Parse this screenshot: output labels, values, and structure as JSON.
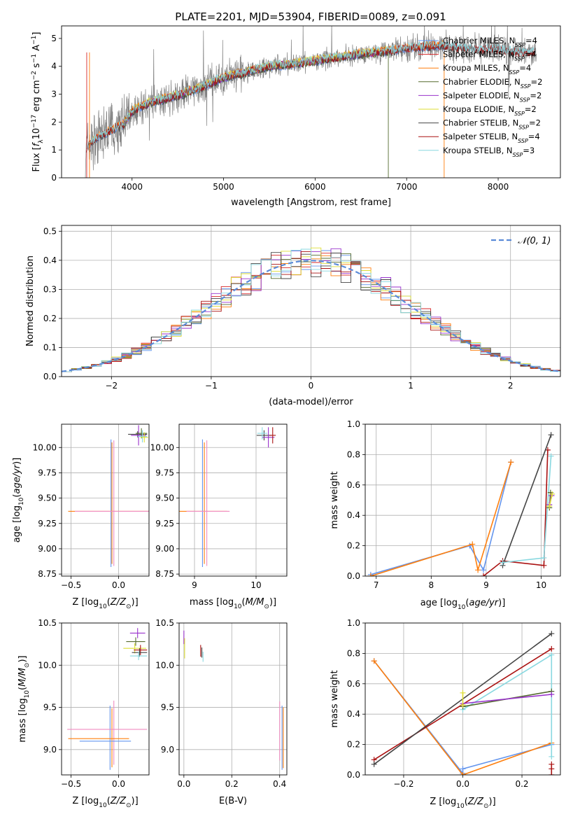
{
  "figure": {
    "title": "PLATE=2201, MJD=53904, FIBERID=0089, z=0.091"
  },
  "colors": {
    "chabrier_miles": "#6495ed",
    "salpeter_miles": "#d62728",
    "kroupa_miles": "#ff7f0e",
    "chabrier_elodie": "#556b2f",
    "salpeter_elodie": "#9932cc",
    "kroupa_elodie": "#dddd33",
    "chabrier_stelib": "#444444",
    "salpeter_stelib": "#aa1111",
    "kroupa_stelib": "#88d8e0",
    "data_gray": "#808080",
    "gaussian": "#5b8bd8",
    "pink": "#f08cc0",
    "green": "#6ccf6c"
  },
  "chart_data": [
    {
      "id": "spectrum",
      "type": "line",
      "title": "PLATE=2201, MJD=53904, FIBERID=0089, z=0.091",
      "xlabel": "wavelength [Angstrom, rest frame]",
      "ylabel": "Flux [f_λ 10^-17 erg cm^-2 s^-1 A^-1]",
      "xlim": [
        3230,
        8680
      ],
      "ylim": [
        0,
        5.45
      ],
      "xticks": [
        "4000",
        "5000",
        "6000",
        "7000",
        "8000"
      ],
      "yticks": [
        "0",
        "1",
        "2",
        "3",
        "4",
        "5"
      ],
      "grid": false,
      "legend_position": "upper-right",
      "continuum": {
        "x": [
          3500,
          3600,
          3700,
          3800,
          3900,
          4000,
          4200,
          4500,
          4800,
          5000,
          5200,
          5500,
          5800,
          6000,
          6200,
          6500,
          6800,
          7000,
          7200,
          7400,
          7600,
          7800,
          8000,
          8200,
          8400
        ],
        "y": [
          1.1,
          1.4,
          1.6,
          1.75,
          1.9,
          2.4,
          2.7,
          2.95,
          3.3,
          3.6,
          3.75,
          4.0,
          4.1,
          4.2,
          4.3,
          4.45,
          4.55,
          4.65,
          4.7,
          4.75,
          4.65,
          4.6,
          4.6,
          4.5,
          4.5
        ]
      },
      "legend": [
        {
          "label": "Chabrier MILES, N",
          "sub": "SSP",
          "suffix": "=4",
          "color_key": "chabrier_miles"
        },
        {
          "label": "Salpeter MILES, N",
          "sub": "SSP",
          "suffix": "=4",
          "color_key": "salpeter_miles"
        },
        {
          "label": "Kroupa MILES, N",
          "sub": "SSP",
          "suffix": "=4",
          "color_key": "kroupa_miles"
        },
        {
          "label": "Chabrier ELODIE, N",
          "sub": "SSP",
          "suffix": "=2",
          "color_key": "chabrier_elodie"
        },
        {
          "label": "Salpeter ELODIE, N",
          "sub": "SSP",
          "suffix": "=2",
          "color_key": "salpeter_elodie"
        },
        {
          "label": "Kroupa ELODIE, N",
          "sub": "SSP",
          "suffix": "=2",
          "color_key": "kroupa_elodie"
        },
        {
          "label": "Chabrier STELIB, N",
          "sub": "SSP",
          "suffix": "=2",
          "color_key": "chabrier_stelib"
        },
        {
          "label": "Salpeter STELIB, N",
          "sub": "SSP",
          "suffix": "=4",
          "color_key": "salpeter_stelib"
        },
        {
          "label": "Kroupa STELIB, N",
          "sub": "SSP",
          "suffix": "=3",
          "color_key": "kroupa_stelib"
        }
      ]
    },
    {
      "id": "residuals",
      "type": "line",
      "xlabel": "(data-model)/error",
      "ylabel": "Normed distribution",
      "xlim": [
        -2.5,
        2.5
      ],
      "ylim": [
        0,
        0.52
      ],
      "xticks": [
        "−2",
        "−1",
        "0",
        "1",
        "2"
      ],
      "yticks": [
        "0.0",
        "0.1",
        "0.2",
        "0.3",
        "0.4",
        "0.5"
      ],
      "grid": true,
      "legend": [
        {
          "label": "𝒩(0, 1)",
          "color_key": "gaussian"
        }
      ],
      "legend_position": "upper-right",
      "gaussian": {
        "mean": 0,
        "sigma": 1
      }
    },
    {
      "id": "age_vs_Z",
      "type": "scatter",
      "xlabel": "Z [log10(Z/Z⊙)]",
      "ylabel": "age  [log10(age/yr)]",
      "xlim": [
        -0.6,
        0.32
      ],
      "ylim": [
        8.73,
        10.23
      ],
      "xticks": [
        "−0.5",
        "0.0"
      ],
      "yticks": [
        "8.75",
        "9.00",
        "9.25",
        "9.50",
        "9.75",
        "10.00"
      ],
      "grid": true,
      "errorbars": [
        {
          "x": -0.08,
          "y": 9.45,
          "xerr": 0.0,
          "yerr": 0.63,
          "color_key": "chabrier_miles"
        },
        {
          "x": -0.07,
          "y": 9.45,
          "xerr": 0.0,
          "yerr": 0.6,
          "color_key": "kroupa_miles"
        },
        {
          "x": -0.05,
          "y": 9.45,
          "xerr": 0.0,
          "yerr": 0.62,
          "color_key": "pink"
        },
        {
          "x": -0.1,
          "y": 9.37,
          "xerr": 0.43,
          "yerr": 0.0,
          "color_key": "kroupa_miles"
        },
        {
          "x": -0.06,
          "y": 9.37,
          "xerr": 0.4,
          "yerr": 0.0,
          "color_key": "pink"
        },
        {
          "x": 0.2,
          "y": 10.13,
          "xerr": 0.1,
          "yerr": 0.03,
          "color_key": "chabrier_stelib"
        },
        {
          "x": 0.21,
          "y": 10.12,
          "xerr": 0.08,
          "yerr": 0.1,
          "color_key": "salpeter_elodie"
        },
        {
          "x": 0.24,
          "y": 10.14,
          "xerr": 0.06,
          "yerr": 0.05,
          "color_key": "chabrier_elodie"
        },
        {
          "x": 0.25,
          "y": 10.11,
          "xerr": 0.05,
          "yerr": 0.06,
          "color_key": "kroupa_stelib"
        },
        {
          "x": 0.27,
          "y": 10.1,
          "xerr": 0.04,
          "yerr": 0.05,
          "color_key": "kroupa_elodie"
        }
      ]
    },
    {
      "id": "age_vs_mass",
      "type": "scatter",
      "xlabel": "mass [log10(M/M⊙)]",
      "xlim": [
        8.75,
        10.5
      ],
      "ylim": [
        8.73,
        10.23
      ],
      "xticks": [
        "9",
        "10"
      ],
      "yticks": [
        "8.75",
        "9.00",
        "9.25",
        "9.50",
        "9.75",
        "10.00"
      ],
      "grid": true,
      "errorbars": [
        {
          "x": 9.13,
          "y": 9.45,
          "xerr": 0.0,
          "yerr": 0.63,
          "color_key": "chabrier_miles"
        },
        {
          "x": 9.16,
          "y": 9.45,
          "xerr": 0.0,
          "yerr": 0.6,
          "color_key": "kroupa_miles"
        },
        {
          "x": 9.2,
          "y": 9.45,
          "xerr": 0.0,
          "yerr": 0.62,
          "color_key": "pink"
        },
        {
          "x": 9.13,
          "y": 9.37,
          "xerr": 0.4,
          "yerr": 0.0,
          "color_key": "kroupa_miles"
        },
        {
          "x": 9.22,
          "y": 9.37,
          "xerr": 0.35,
          "yerr": 0.0,
          "color_key": "pink"
        },
        {
          "x": 10.13,
          "y": 10.12,
          "xerr": 0.12,
          "yerr": 0.05,
          "color_key": "chabrier_stelib"
        },
        {
          "x": 10.2,
          "y": 10.1,
          "xerr": 0.1,
          "yerr": 0.1,
          "color_key": "salpeter_elodie"
        },
        {
          "x": 10.1,
          "y": 10.14,
          "xerr": 0.08,
          "yerr": 0.06,
          "color_key": "kroupa_stelib"
        },
        {
          "x": 10.27,
          "y": 10.12,
          "xerr": 0.05,
          "yerr": 0.08,
          "color_key": "salpeter_stelib"
        }
      ]
    },
    {
      "id": "weights_vs_age",
      "type": "line",
      "xlabel": "age  [log10(age/yr)]",
      "ylabel": "mass weight",
      "xlim": [
        6.8,
        10.35
      ],
      "ylim": [
        0,
        1.0
      ],
      "xticks": [
        "7",
        "8",
        "9",
        "10"
      ],
      "yticks": [
        "0.0",
        "0.2",
        "0.4",
        "0.6",
        "0.8",
        "1.0"
      ],
      "grid": true,
      "series": [
        {
          "color_key": "chabrier_miles",
          "x": [
            6.9,
            8.7,
            8.95,
            9.45
          ],
          "y": [
            0.01,
            0.2,
            0.04,
            0.75
          ]
        },
        {
          "color_key": "kroupa_miles",
          "x": [
            6.9,
            8.75,
            8.85,
            9.45
          ],
          "y": [
            0.0,
            0.21,
            0.04,
            0.75
          ]
        },
        {
          "color_key": "salpeter_stelib",
          "x": [
            8.95,
            9.3,
            10.05,
            10.12
          ],
          "y": [
            0.0,
            0.1,
            0.07,
            0.83
          ]
        },
        {
          "color_key": "chabrier_stelib",
          "x": [
            9.3,
            10.18
          ],
          "y": [
            0.07,
            0.93
          ]
        },
        {
          "color_key": "kroupa_stelib",
          "x": [
            9.3,
            10.05,
            10.18
          ],
          "y": [
            0.09,
            0.12,
            0.79
          ]
        },
        {
          "color_key": "chabrier_elodie",
          "x": [
            10.15,
            10.17
          ],
          "y": [
            0.45,
            0.55
          ]
        },
        {
          "color_key": "salpeter_elodie",
          "x": [
            10.15,
            10.19
          ],
          "y": [
            0.47,
            0.53
          ]
        },
        {
          "color_key": "kroupa_elodie",
          "x": [
            10.15,
            10.2
          ],
          "y": [
            0.46,
            0.54
          ]
        }
      ]
    },
    {
      "id": "mass_vs_Z",
      "type": "scatter",
      "xlabel": "Z [log10(Z/Z⊙)]",
      "ylabel": "mass [log10(M/M⊙)]",
      "xlim": [
        -0.6,
        0.32
      ],
      "ylim": [
        8.7,
        10.5
      ],
      "xticks": [
        "−0.5",
        "0.0"
      ],
      "yticks": [
        "9.0",
        "9.5",
        "10.0",
        "10.5"
      ],
      "grid": true,
      "errorbars": [
        {
          "x": -0.09,
          "y": 9.14,
          "xerr": 0.0,
          "yerr": 0.38,
          "color_key": "chabrier_miles"
        },
        {
          "x": -0.07,
          "y": 9.14,
          "xerr": 0.0,
          "yerr": 0.35,
          "color_key": "kroupa_miles"
        },
        {
          "x": -0.05,
          "y": 9.2,
          "xerr": 0.0,
          "yerr": 0.38,
          "color_key": "pink"
        },
        {
          "x": -0.21,
          "y": 9.13,
          "xerr": 0.32,
          "yerr": 0.0,
          "color_key": "kroupa_miles"
        },
        {
          "x": -0.14,
          "y": 9.1,
          "xerr": 0.27,
          "yerr": 0.0,
          "color_key": "chabrier_miles"
        },
        {
          "x": -0.12,
          "y": 9.24,
          "xerr": 0.42,
          "yerr": 0.0,
          "color_key": "pink"
        },
        {
          "x": 0.2,
          "y": 10.38,
          "xerr": 0.08,
          "yerr": 0.06,
          "color_key": "salpeter_elodie"
        },
        {
          "x": 0.18,
          "y": 10.28,
          "xerr": 0.1,
          "yerr": 0.05,
          "color_key": "chabrier_elodie"
        },
        {
          "x": 0.17,
          "y": 10.2,
          "xerr": 0.12,
          "yerr": 0.06,
          "color_key": "kroupa_elodie"
        },
        {
          "x": 0.23,
          "y": 10.18,
          "xerr": 0.07,
          "yerr": 0.06,
          "color_key": "salpeter_stelib"
        },
        {
          "x": 0.22,
          "y": 10.15,
          "xerr": 0.08,
          "yerr": 0.05,
          "color_key": "chabrier_stelib"
        },
        {
          "x": 0.21,
          "y": 10.11,
          "xerr": 0.09,
          "yerr": 0.05,
          "color_key": "kroupa_stelib"
        }
      ]
    },
    {
      "id": "mass_vs_ebv",
      "type": "scatter",
      "xlabel": "E(B-V)",
      "xlim": [
        -0.02,
        0.43
      ],
      "ylim": [
        8.7,
        10.5
      ],
      "xticks": [
        "0.0",
        "0.2",
        "0.4"
      ],
      "yticks": [
        "9.0",
        "9.5",
        "10.0",
        "10.5"
      ],
      "grid": true,
      "errorbars": [
        {
          "x": 0.0,
          "y": 10.33,
          "xerr": 0.0,
          "yerr": 0.08,
          "color_key": "salpeter_elodie"
        },
        {
          "x": 0.003,
          "y": 10.2,
          "xerr": 0.0,
          "yerr": 0.12,
          "color_key": "kroupa_elodie"
        },
        {
          "x": 0.07,
          "y": 10.17,
          "xerr": 0.0,
          "yerr": 0.07,
          "color_key": "salpeter_stelib"
        },
        {
          "x": 0.075,
          "y": 10.15,
          "xerr": 0.0,
          "yerr": 0.06,
          "color_key": "chabrier_stelib"
        },
        {
          "x": 0.08,
          "y": 10.1,
          "xerr": 0.0,
          "yerr": 0.06,
          "color_key": "kroupa_stelib"
        },
        {
          "x": 0.4,
          "y": 9.22,
          "xerr": 0.0,
          "yerr": 0.35,
          "color_key": "pink"
        },
        {
          "x": 0.41,
          "y": 9.14,
          "xerr": 0.0,
          "yerr": 0.38,
          "color_key": "chabrier_miles"
        },
        {
          "x": 0.415,
          "y": 9.14,
          "xerr": 0.0,
          "yerr": 0.36,
          "color_key": "kroupa_miles"
        }
      ]
    },
    {
      "id": "weights_vs_Z",
      "type": "line",
      "xlabel": "Z [log10(Z/Z⊙)]",
      "ylabel": "mass weight",
      "xlim": [
        -0.33,
        0.33
      ],
      "ylim": [
        0,
        1.0
      ],
      "xticks": [
        "−0.2",
        "0.0",
        "0.2"
      ],
      "yticks": [
        "0.0",
        "0.2",
        "0.4",
        "0.6",
        "0.8",
        "1.0"
      ],
      "grid": true,
      "series": [
        {
          "color_key": "chabrier_miles",
          "x": [
            -0.3,
            0.0,
            0.0,
            0.3
          ],
          "y": [
            0.75,
            0.01,
            0.04,
            0.2
          ]
        },
        {
          "color_key": "kroupa_miles",
          "x": [
            -0.3,
            0.0,
            0.3
          ],
          "y": [
            0.75,
            0.0,
            0.21
          ]
        },
        {
          "color_key": "salpeter_stelib",
          "x": [
            -0.3,
            0.3
          ],
          "y": [
            0.1,
            0.83
          ]
        },
        {
          "color_key": "chabrier_stelib",
          "x": [
            -0.3,
            0.3
          ],
          "y": [
            0.07,
            0.93
          ]
        },
        {
          "color_key": "kroupa_stelib",
          "x": [
            0.0,
            0.3,
            0.3
          ],
          "y": [
            0.43,
            0.79,
            0.12
          ]
        },
        {
          "color_key": "chabrier_elodie",
          "x": [
            0.0,
            0.3
          ],
          "y": [
            0.45,
            0.55
          ]
        },
        {
          "color_key": "salpeter_elodie",
          "x": [
            0.0,
            0.3
          ],
          "y": [
            0.47,
            0.53
          ]
        },
        {
          "color_key": "kroupa_elodie",
          "x": [
            0.0,
            0.0
          ],
          "y": [
            0.46,
            0.54
          ]
        },
        {
          "color_key": "salpeter_stelib",
          "x": [
            0.3,
            0.3,
            0.3
          ],
          "y": [
            0.0,
            0.04,
            0.07
          ]
        }
      ]
    }
  ]
}
